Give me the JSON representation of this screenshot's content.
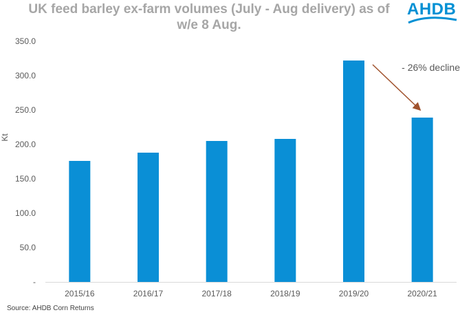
{
  "header": {
    "title_line1": "UK feed barley ex-farm volumes (July - Aug delivery) as of",
    "title_line2": "w/e 8 Aug.",
    "logo_text": "AHDB"
  },
  "footer": {
    "source": "Source: AHDB Corn Returns"
  },
  "colors": {
    "bar": "#0a8fd6",
    "arrow": "#a0522d",
    "logo": "#0090d4"
  },
  "chart_data": {
    "type": "bar",
    "categories": [
      "2015/16",
      "2016/17",
      "2017/18",
      "2018/19",
      "2019/20",
      "2020/21"
    ],
    "values": [
      176,
      188,
      205,
      208,
      322,
      239
    ],
    "ylabel": "Kt",
    "xlabel": "",
    "ylim": [
      0,
      350
    ],
    "yticks": [
      0,
      50,
      100,
      150,
      200,
      250,
      300,
      350
    ],
    "ytick_labels": [
      "-",
      "50.0",
      "100.0",
      "150.0",
      "200.0",
      "250.0",
      "300.0",
      "350.0"
    ],
    "grid": false,
    "annotation": {
      "text": "- 26% decline",
      "from_category": "2019/20",
      "to_category": "2020/21"
    }
  }
}
